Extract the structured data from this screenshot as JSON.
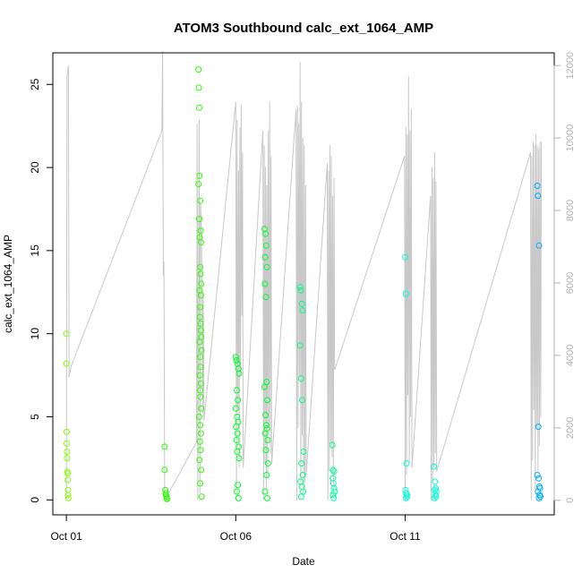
{
  "chart_data": {
    "type": "scatter",
    "title": "ATOM3 Southbound calc_ext_1064_AMP",
    "xlabel": "Date",
    "ylabel": "calc_ext_1064_AMP",
    "x_ticks": [
      "Oct 01",
      "Oct 06",
      "Oct 11"
    ],
    "x_tick_days": [
      1,
      6,
      11
    ],
    "xlim": [
      0.6,
      15.4
    ],
    "ylim": [
      -0.9,
      26.9
    ],
    "y_ticks": [
      0,
      5,
      10,
      15,
      20,
      25
    ],
    "y2lim": [
      -400,
      12350
    ],
    "y2_ticks": [
      0,
      2000,
      4000,
      6000,
      8000,
      10000,
      12000
    ],
    "grid": false,
    "point_style": "open-circle",
    "point_colors": [
      "#80ff00",
      "#55ff00",
      "#2bff00",
      "#00ff2b",
      "#00ff80",
      "#00ffaa",
      "#00ffd5",
      "#00d5ff",
      "#00aaff"
    ],
    "line_color": "#c8c8c8",
    "series": [
      {
        "x": [
          1.0,
          1.0,
          1.01,
          1.01,
          1.02,
          1.02,
          1.03,
          1.04,
          1.04,
          1.05,
          1.05,
          1.06
        ],
        "y": [
          10.0,
          8.2,
          4.1,
          3.4,
          2.9,
          2.5,
          1.7,
          1.6,
          1.2,
          0.6,
          0.3,
          0.1
        ]
      },
      {
        "x": [
          3.9,
          3.9,
          3.92,
          3.93,
          3.94,
          3.95,
          3.96,
          3.97
        ],
        "y": [
          3.2,
          1.8,
          0.6,
          0.4,
          0.3,
          0.2,
          0.1,
          0.05
        ]
      },
      {
        "x": [
          4.9,
          4.91,
          4.92,
          4.9,
          4.93,
          4.95,
          4.96,
          4.92,
          4.97,
          4.94,
          4.95,
          4.96,
          4.98,
          4.93,
          4.97,
          4.95,
          4.94,
          4.96,
          4.97,
          4.98,
          4.93,
          4.99,
          4.95,
          4.96,
          4.94,
          4.97,
          4.95,
          4.96,
          4.98,
          4.92,
          4.95,
          4.97,
          4.94,
          4.96,
          4.93,
          4.98,
          4.95,
          4.99
        ],
        "y": [
          25.9,
          24.8,
          23.6,
          19.0,
          19.5,
          18.0,
          16.2,
          16.9,
          15.5,
          15.8,
          14.0,
          13.6,
          13.0,
          12.6,
          12.3,
          11.6,
          11.0,
          10.6,
          10.2,
          9.8,
          9.5,
          9.0,
          8.6,
          8.0,
          7.5,
          7.0,
          6.6,
          6.2,
          5.5,
          5.0,
          4.5,
          4.0,
          3.5,
          3.0,
          2.4,
          1.8,
          1.0,
          0.2
        ]
      },
      {
        "x": [
          6.0,
          6.02,
          6.05,
          6.08,
          6.1,
          6.03,
          6.06,
          6.0,
          6.04,
          6.07,
          6.01,
          6.05,
          6.02,
          6.09,
          6.04,
          6.1,
          6.06,
          6.03,
          6.08
        ],
        "y": [
          8.6,
          8.4,
          8.2,
          7.9,
          7.6,
          6.6,
          6.0,
          5.5,
          5.0,
          4.7,
          4.4,
          4.0,
          3.6,
          3.2,
          2.9,
          2.5,
          0.9,
          0.5,
          0.1
        ]
      },
      {
        "x": [
          6.85,
          6.88,
          6.9,
          6.87,
          6.92,
          6.86,
          6.89,
          6.91,
          6.85,
          6.93,
          6.88,
          6.9,
          6.92,
          6.87,
          6.94,
          6.89,
          6.95,
          6.91,
          6.86,
          6.93
        ],
        "y": [
          16.3,
          16.0,
          15.3,
          14.6,
          14.0,
          13.0,
          12.2,
          7.1,
          6.8,
          6.0,
          5.1,
          4.5,
          4.3,
          4.0,
          3.6,
          3.0,
          2.2,
          1.5,
          0.5,
          0.1
        ]
      },
      {
        "x": [
          7.9,
          7.92,
          7.95,
          7.97,
          7.9,
          7.93,
          7.96,
          8.0,
          7.94,
          7.98,
          7.91,
          7.95,
          7.99,
          7.93
        ],
        "y": [
          12.8,
          12.6,
          11.8,
          11.4,
          9.3,
          7.3,
          6.0,
          2.9,
          2.2,
          1.5,
          1.1,
          0.8,
          0.5,
          0.2
        ]
      },
      {
        "x": [
          8.85,
          8.87,
          8.9,
          8.86,
          8.88,
          8.9,
          8.92,
          8.87,
          8.89
        ],
        "y": [
          3.3,
          1.8,
          1.7,
          1.3,
          1.0,
          0.7,
          0.5,
          0.3,
          0.1
        ]
      },
      {
        "x": [
          11.0,
          11.02,
          11.04,
          11.01,
          11.03,
          11.05,
          11.06,
          11.02
        ],
        "y": [
          14.6,
          12.4,
          2.2,
          0.6,
          0.4,
          0.3,
          0.2,
          0.1
        ]
      },
      {
        "x": [
          11.85,
          11.88,
          11.9,
          11.87,
          11.92,
          11.89,
          11.91,
          11.86
        ],
        "y": [
          2.0,
          1.1,
          0.7,
          0.6,
          0.5,
          0.3,
          0.2,
          0.1
        ]
      },
      {
        "x": [
          14.9,
          14.92,
          14.95,
          14.93,
          14.9,
          14.94,
          14.96,
          14.98,
          14.92,
          14.97,
          14.99,
          14.95
        ],
        "y": [
          18.9,
          18.3,
          15.3,
          4.4,
          1.5,
          1.3,
          0.8,
          0.7,
          0.5,
          0.3,
          0.2,
          0.1
        ]
      }
    ],
    "secondary_line": {
      "x": [
        1.0,
        1.02,
        1.06,
        1.08,
        1.1,
        1.12,
        1.14,
        3.82,
        3.84,
        3.86,
        3.88,
        3.9,
        4.84,
        4.86,
        4.88,
        4.9,
        4.92,
        4.94,
        4.96,
        4.98,
        5.0,
        5.02,
        5.04,
        5.06,
        6.0,
        6.02,
        6.04,
        6.06,
        6.08,
        6.1,
        6.12,
        6.14,
        6.16,
        6.18,
        6.2,
        6.22,
        6.8,
        6.82,
        6.84,
        6.86,
        6.88,
        6.9,
        6.92,
        6.94,
        6.96,
        6.98,
        7.0,
        7.02,
        7.04,
        7.06,
        7.78,
        7.8,
        7.82,
        7.84,
        7.86,
        7.88,
        7.9,
        7.92,
        7.94,
        7.96,
        7.98,
        8.0,
        8.02,
        8.04,
        8.06,
        8.08,
        8.7,
        8.72,
        8.74,
        8.76,
        8.78,
        8.8,
        8.82,
        8.84,
        8.86,
        8.88,
        8.9,
        8.92,
        10.98,
        11.0,
        11.02,
        11.04,
        11.06,
        11.08,
        11.1,
        11.12,
        11.14,
        11.16,
        11.18,
        11.2,
        11.75,
        11.77,
        11.79,
        11.81,
        11.83,
        11.85,
        11.87,
        11.89,
        11.91,
        11.93,
        14.7,
        14.72,
        14.74,
        14.76,
        14.78,
        14.8,
        14.82,
        14.84,
        14.86,
        14.88,
        14.9,
        14.92,
        14.94,
        14.96,
        14.98,
        15.0,
        15.02
      ],
      "y": [
        0,
        11700,
        12000,
        3400,
        3500,
        3600,
        3700,
        10200,
        12400,
        6200,
        6600,
        0,
        1600,
        10400,
        0,
        5500,
        10500,
        200,
        8200,
        7800,
        6200,
        2400,
        5800,
        2200,
        11000,
        0,
        10500,
        2600,
        9100,
        900,
        10300,
        3400,
        10900,
        5100,
        9600,
        900,
        10200,
        0,
        9800,
        1000,
        9200,
        300,
        8700,
        600,
        10200,
        2000,
        11000,
        1300,
        9500,
        1000,
        10800,
        0,
        10900,
        2000,
        10400,
        3400,
        12100,
        400,
        11000,
        1800,
        10000,
        200,
        9800,
        500,
        8700,
        700,
        9300,
        0,
        9100,
        800,
        9800,
        1600,
        9500,
        1200,
        8400,
        300,
        8900,
        3600,
        9500,
        0,
        10300,
        700,
        10100,
        2900,
        11700,
        1000,
        10200,
        2300,
        10800,
        900,
        8400,
        0,
        9200,
        500,
        8900,
        900,
        9600,
        1300,
        8800,
        800,
        9600,
        0,
        9500,
        1100,
        9900,
        2500,
        9800,
        300,
        10100,
        2000,
        9800,
        800,
        9700,
        1500,
        9900,
        2300,
        9900
      ]
    }
  }
}
